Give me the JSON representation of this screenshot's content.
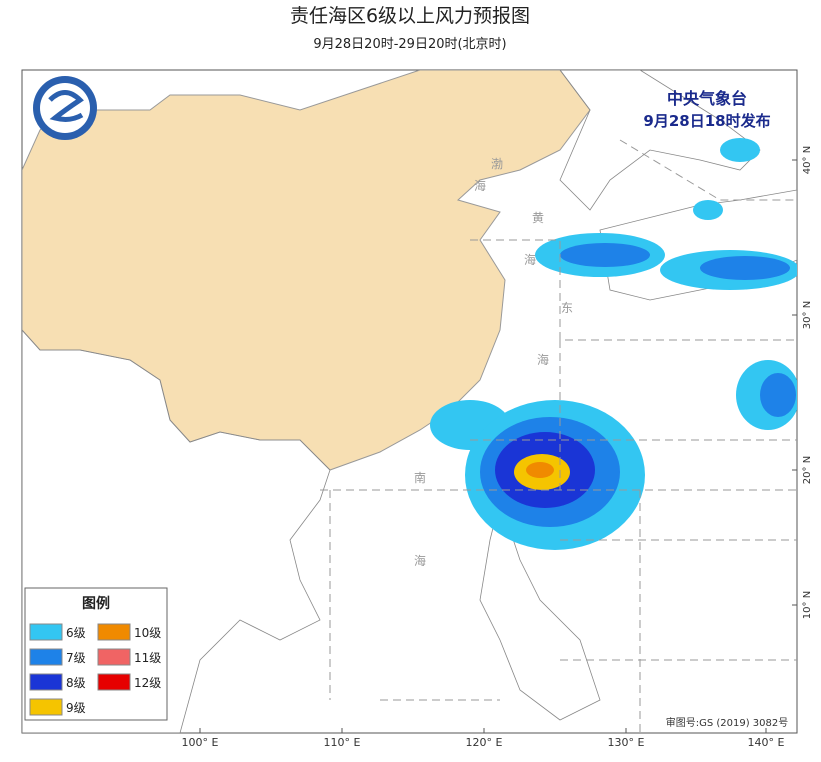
{
  "header": {
    "title": "责任海区6级以上风力预报图",
    "subtitle": "9月28日20时-29日20时(北京时)"
  },
  "issuer": {
    "agency": "中央气象台",
    "issued": "9月28日18时发布"
  },
  "legend": {
    "title": "图例",
    "items": [
      {
        "label": "6级",
        "color": "#33c6f2"
      },
      {
        "label": "7级",
        "color": "#1e82e8"
      },
      {
        "label": "8级",
        "color": "#1a35d6"
      },
      {
        "label": "9级",
        "color": "#f5c400"
      },
      {
        "label": "10级",
        "color": "#f08a00"
      },
      {
        "label": "11级",
        "color": "#f06464"
      },
      {
        "label": "12级",
        "color": "#e60000"
      }
    ]
  },
  "map": {
    "longitude_labels": [
      "100° E",
      "110° E",
      "120° E",
      "130° E",
      "140° E"
    ],
    "latitude_labels": [
      "40° N",
      "30° N",
      "20° N",
      "10° N"
    ],
    "sea_labels": [
      "渤",
      "海",
      "黄",
      "海",
      "东",
      "海",
      "南",
      "海"
    ],
    "approval": "审图号:GS (2019) 3082号"
  }
}
